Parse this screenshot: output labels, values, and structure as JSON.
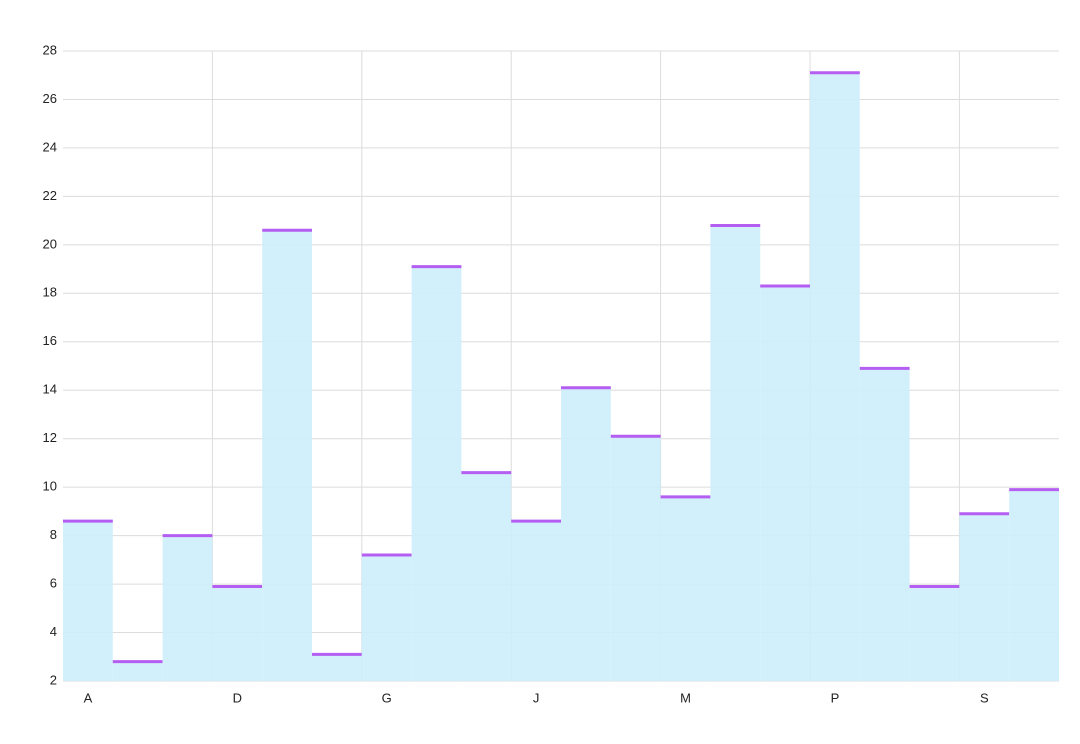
{
  "chart_data": {
    "type": "bar",
    "categories": [
      "A",
      null,
      null,
      "D",
      null,
      null,
      "G",
      null,
      null,
      "J",
      null,
      null,
      "M",
      null,
      null,
      "P",
      null,
      null,
      "S",
      null
    ],
    "values": [
      8.6,
      2.8,
      8.0,
      5.9,
      20.6,
      3.1,
      7.2,
      19.1,
      10.6,
      8.6,
      14.1,
      12.1,
      9.6,
      20.8,
      18.3,
      27.1,
      14.9,
      5.9,
      8.9,
      9.9
    ],
    "color": "#cdeefb",
    "line_color": "#b55ef2",
    "ylim": [
      2,
      28
    ],
    "yticks": [
      2,
      4,
      6,
      8,
      10,
      12,
      14,
      16,
      18,
      20,
      22,
      24,
      26,
      28
    ],
    "grid": true
  }
}
